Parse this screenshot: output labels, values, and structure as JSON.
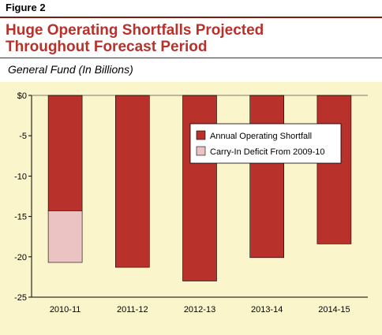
{
  "figure_label": "Figure 2",
  "title_line1": "Huge Operating Shortfalls Projected",
  "title_line2": "Throughout Forecast Period",
  "subtitle": "General Fund (In Billions)",
  "colors": {
    "annual": "#b8312b",
    "carry": "#ebc3c3",
    "background": "#fbf5cc",
    "title": "#b8312b"
  },
  "chart_data": {
    "type": "bar",
    "stacked": true,
    "categories": [
      "2010-11",
      "2011-12",
      "2012-13",
      "2013-14",
      "2014-15"
    ],
    "series": [
      {
        "name": "Annual Operating Shortfall",
        "values": [
          -14.3,
          -21.3,
          -23.0,
          -20.1,
          -18.4
        ]
      },
      {
        "name": "Carry-In Deficit From 2009-10",
        "values": [
          -6.4,
          0,
          0,
          0,
          0
        ]
      }
    ],
    "ylim": [
      -25,
      0
    ],
    "y_ticks": [
      "$0",
      "-5",
      "-10",
      "-15",
      "-20",
      "-25"
    ],
    "y_tick_values": [
      0,
      -5,
      -10,
      -15,
      -20,
      -25
    ],
    "legend_position": "upper-right",
    "grid": false
  }
}
